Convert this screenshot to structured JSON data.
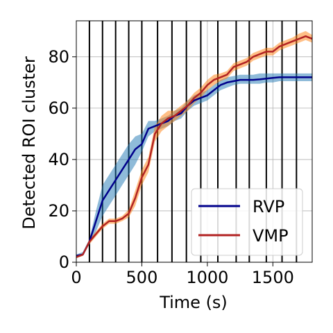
{
  "chart_data": {
    "type": "line",
    "title": "",
    "xlabel": "Time (s)",
    "ylabel": "Detected ROI cluster",
    "xlim": [
      0,
      1800
    ],
    "ylim": [
      0,
      94
    ],
    "xticks": [
      0,
      500,
      1000,
      1500
    ],
    "xtick_labels": [
      "0",
      "500",
      "1000",
      "1500"
    ],
    "yticks": [
      0,
      20,
      40,
      60,
      80
    ],
    "ytick_labels": [
      "0",
      "20",
      "40",
      "60",
      "80"
    ],
    "grid": true,
    "legend_position": "lower-right",
    "vertical_event_lines": [
      100,
      200,
      300,
      400,
      500,
      620,
      730,
      840,
      950,
      1080,
      1220,
      1320,
      1450,
      1570,
      1680
    ],
    "series": [
      {
        "name": "RVP",
        "color": "#00008b",
        "band_color": "#1f77b4",
        "x": [
          0,
          50,
          100,
          150,
          200,
          250,
          300,
          350,
          400,
          450,
          500,
          550,
          600,
          650,
          700,
          750,
          800,
          850,
          900,
          950,
          1000,
          1050,
          1100,
          1150,
          1200,
          1250,
          1300,
          1350,
          1400,
          1450,
          1500,
          1550,
          1600,
          1650,
          1700,
          1750,
          1800
        ],
        "y": [
          2.5,
          3,
          8,
          16,
          24,
          28,
          32,
          36,
          40,
          44,
          46,
          52,
          53,
          54,
          55,
          57,
          58,
          61,
          63,
          64,
          65,
          67,
          69,
          70,
          70.5,
          71,
          71,
          71,
          71.2,
          71.5,
          71.8,
          72,
          72,
          72,
          72,
          72,
          72
        ],
        "y_low": [
          2,
          2.5,
          7,
          12,
          18,
          22,
          26,
          30,
          34,
          38,
          43,
          49,
          51,
          52,
          53,
          55,
          56,
          59,
          61,
          62,
          63,
          65,
          67,
          68,
          69,
          69.5,
          69.5,
          69.5,
          69.5,
          70,
          70,
          70.5,
          70.5,
          70.5,
          70.5,
          70.5,
          70.5
        ],
        "y_high": [
          3,
          4,
          9,
          20,
          30,
          34,
          38,
          42,
          46,
          49,
          50,
          55,
          55,
          56,
          57,
          59,
          60,
          63,
          65,
          66,
          67,
          69,
          71,
          72,
          72.5,
          73,
          73,
          73,
          73.5,
          73.5,
          73.5,
          73.5,
          73.5,
          73.5,
          73.5,
          73.5,
          73.5
        ]
      },
      {
        "name": "VMP",
        "color": "#b22222",
        "band_color": "#ff7f0e",
        "x": [
          0,
          50,
          100,
          150,
          200,
          250,
          300,
          350,
          400,
          450,
          500,
          550,
          600,
          650,
          700,
          750,
          800,
          850,
          900,
          950,
          1000,
          1050,
          1100,
          1150,
          1200,
          1250,
          1300,
          1350,
          1400,
          1450,
          1500,
          1550,
          1600,
          1650,
          1700,
          1750,
          1800
        ],
        "y": [
          2,
          3,
          8,
          11,
          14,
          16,
          16,
          17,
          19,
          25,
          33,
          38,
          50,
          54,
          56,
          57,
          59,
          61,
          64,
          66,
          69,
          71,
          72,
          73,
          76,
          77,
          78,
          80,
          81,
          82,
          82,
          84,
          85,
          86,
          87,
          88,
          87
        ],
        "y_low": [
          1.5,
          2.5,
          7,
          10,
          13,
          15,
          15,
          16,
          17.5,
          22,
          30,
          35,
          47,
          51,
          53,
          55,
          57,
          59,
          62,
          64,
          67,
          69,
          70.5,
          71.5,
          74.5,
          75.5,
          76.5,
          78.5,
          79.5,
          80.5,
          80.5,
          82.5,
          83.5,
          84.5,
          85.5,
          86.5,
          85.5
        ],
        "y_high": [
          2.5,
          3.5,
          9,
          12,
          15,
          17,
          17,
          18,
          20.5,
          28,
          36,
          41,
          53,
          57,
          59,
          59,
          61,
          63,
          66,
          68,
          71,
          73,
          73.5,
          74.5,
          77.5,
          78.5,
          79.5,
          81.5,
          82.5,
          83.5,
          83.5,
          85.5,
          86.5,
          87.5,
          89,
          90,
          88.5
        ]
      }
    ]
  }
}
